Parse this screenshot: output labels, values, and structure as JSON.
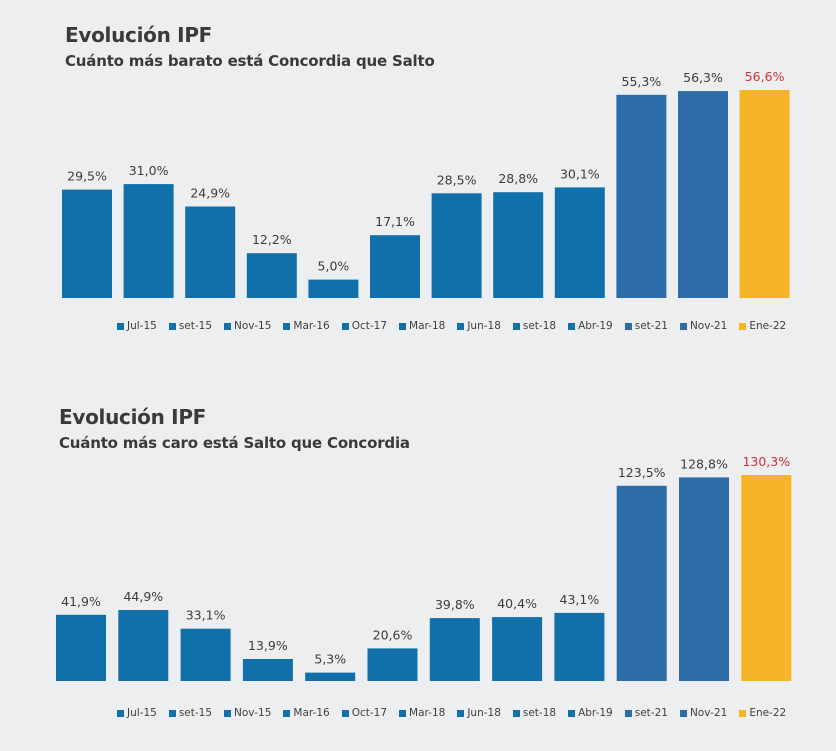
{
  "chart_data": [
    {
      "id": "top",
      "type": "bar",
      "title": "Evolución IPF",
      "subtitle": "Cuánto más barato está Concordia que Salto",
      "xlabel": "",
      "ylabel": "",
      "ylim": [
        0,
        56.6
      ],
      "grid": false,
      "legend_position": "bottom",
      "categories": [
        "Jul-15",
        "set-15",
        "Nov-15",
        "Mar-16",
        "Oct-17",
        "Mar-18",
        "Jun-18",
        "set-18",
        "Abr-19",
        "set-21",
        "Nov-21",
        "Ene-22"
      ],
      "values": [
        29.5,
        31.0,
        24.9,
        12.2,
        5.0,
        17.1,
        28.5,
        28.8,
        30.1,
        55.3,
        56.3,
        56.6
      ],
      "data_labels": [
        "29,5%",
        "31,0%",
        "24,9%",
        "12,2%",
        "5,0%",
        "17,1%",
        "28,5%",
        "28,8%",
        "30,1%",
        "55,3%",
        "56,3%",
        "56,6%"
      ],
      "colors": [
        "#1170aa",
        "#1170aa",
        "#1170aa",
        "#1170aa",
        "#1170aa",
        "#1170aa",
        "#1170aa",
        "#1170aa",
        "#1170aa",
        "#2c6ca8",
        "#2c6ca8",
        "#f6b428"
      ],
      "highlight_index": 11
    },
    {
      "id": "bottom",
      "type": "bar",
      "title": "Evolución IPF",
      "subtitle": "Cuánto más caro está Salto que Concordia",
      "xlabel": "",
      "ylabel": "",
      "ylim": [
        0,
        130.3
      ],
      "grid": false,
      "legend_position": "bottom",
      "categories": [
        "Jul-15",
        "set-15",
        "Nov-15",
        "Mar-16",
        "Oct-17",
        "Mar-18",
        "Jun-18",
        "set-18",
        "Abr-19",
        "set-21",
        "Nov-21",
        "Ene-22"
      ],
      "values": [
        41.9,
        44.9,
        33.1,
        13.9,
        5.3,
        20.6,
        39.8,
        40.4,
        43.1,
        123.5,
        128.8,
        130.3
      ],
      "data_labels": [
        "41,9%",
        "44,9%",
        "33,1%",
        "13,9%",
        "5,3%",
        "20,6%",
        "39,8%",
        "40,4%",
        "43,1%",
        "123,5%",
        "128,8%",
        "130,3%"
      ],
      "colors": [
        "#1170aa",
        "#1170aa",
        "#1170aa",
        "#1170aa",
        "#1170aa",
        "#1170aa",
        "#1170aa",
        "#1170aa",
        "#1170aa",
        "#2c6ca8",
        "#2c6ca8",
        "#f6b428"
      ],
      "highlight_index": 11
    }
  ],
  "highlight_label_color": "#c8333a"
}
